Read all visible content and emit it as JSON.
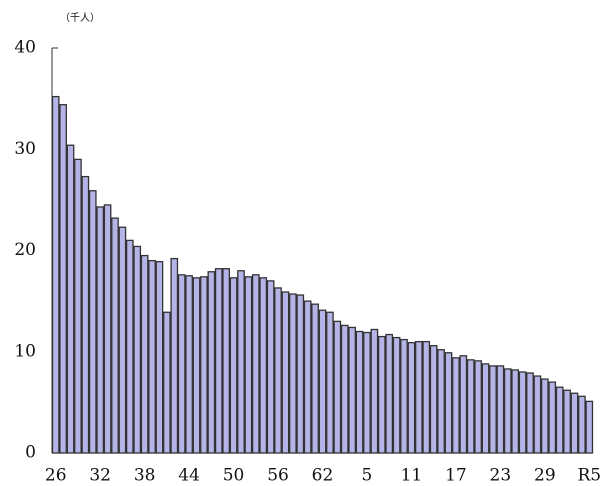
{
  "chart_data": {
    "type": "bar",
    "y_axis_label": "（千人）",
    "categories": [
      "26",
      null,
      null,
      null,
      null,
      null,
      "32",
      null,
      null,
      null,
      null,
      null,
      "38",
      null,
      null,
      null,
      null,
      null,
      "44",
      null,
      null,
      null,
      null,
      null,
      "50",
      null,
      null,
      null,
      null,
      null,
      "56",
      null,
      null,
      null,
      null,
      null,
      "62",
      null,
      null,
      null,
      null,
      null,
      "5",
      null,
      null,
      null,
      null,
      null,
      "11",
      null,
      null,
      null,
      null,
      null,
      "17",
      null,
      null,
      null,
      null,
      null,
      "23",
      null,
      null,
      null,
      null,
      null,
      "29",
      null,
      null,
      null,
      null,
      null,
      "R5"
    ],
    "values": [
      35.2,
      34.4,
      30.4,
      29.0,
      27.3,
      25.9,
      24.3,
      24.5,
      23.2,
      22.3,
      21.0,
      20.4,
      19.5,
      19.0,
      18.9,
      13.9,
      19.2,
      17.6,
      17.5,
      17.3,
      17.4,
      17.9,
      18.2,
      18.2,
      17.3,
      18.0,
      17.4,
      17.6,
      17.3,
      17.0,
      16.3,
      15.9,
      15.7,
      15.6,
      15.0,
      14.7,
      14.1,
      13.9,
      13.0,
      12.6,
      12.4,
      12.0,
      11.9,
      12.2,
      11.5,
      11.7,
      11.4,
      11.2,
      10.9,
      11.0,
      11.0,
      10.6,
      10.2,
      9.9,
      9.4,
      9.6,
      9.2,
      9.1,
      8.8,
      8.6,
      8.6,
      8.3,
      8.2,
      8.0,
      7.9,
      7.6,
      7.3,
      7.0,
      6.5,
      6.2,
      5.9,
      5.6,
      5.1
    ],
    "color": "#b4b4e6",
    "ylim": [
      0,
      40
    ],
    "yticks": [
      0,
      10,
      20,
      30,
      40
    ]
  }
}
